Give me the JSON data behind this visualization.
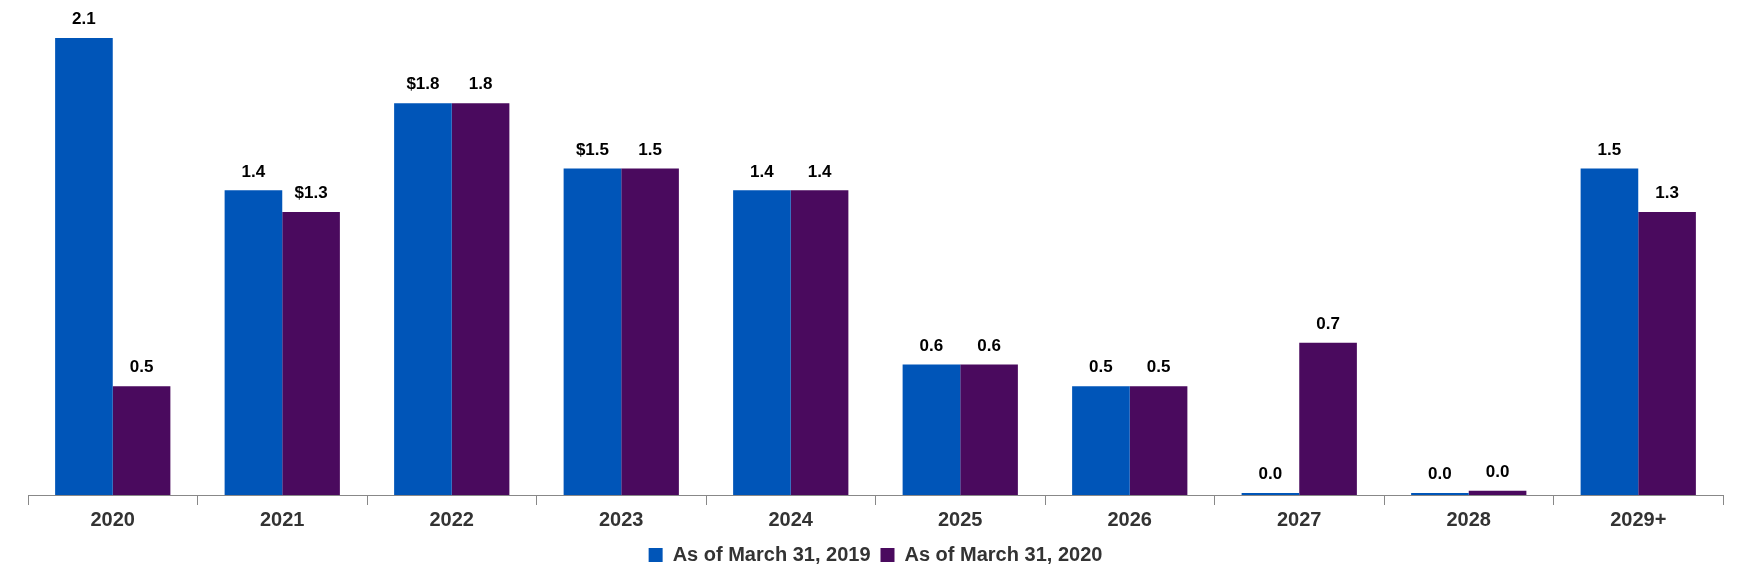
{
  "chart_data": {
    "type": "bar",
    "categories": [
      "2020",
      "2021",
      "2022",
      "2023",
      "2024",
      "2025",
      "2026",
      "2027",
      "2028",
      "2029+"
    ],
    "series": [
      {
        "name": "As of March 31, 2019",
        "color": "#0055b8",
        "values": [
          2.1,
          1.4,
          1.8,
          1.5,
          1.4,
          0.6,
          0.5,
          0.0,
          0.0,
          1.5
        ],
        "value_labels": [
          "2.1",
          "1.4",
          "$1.8",
          "$1.5",
          "1.4",
          "0.6",
          "0.5",
          "0.0",
          "0.0",
          "1.5"
        ]
      },
      {
        "name": "As of March 31, 2020",
        "color": "#4a0a5e",
        "values": [
          0.5,
          1.3,
          1.8,
          1.5,
          1.4,
          0.6,
          0.5,
          0.7,
          0.02,
          1.3
        ],
        "value_labels": [
          "0.5",
          "$1.3",
          "1.8",
          "1.5",
          "1.4",
          "0.6",
          "0.5",
          "0.7",
          "0.0",
          "1.3"
        ]
      }
    ],
    "ylim": [
      0,
      2.1
    ],
    "tick_labels": "x",
    "legend": "bottom"
  }
}
